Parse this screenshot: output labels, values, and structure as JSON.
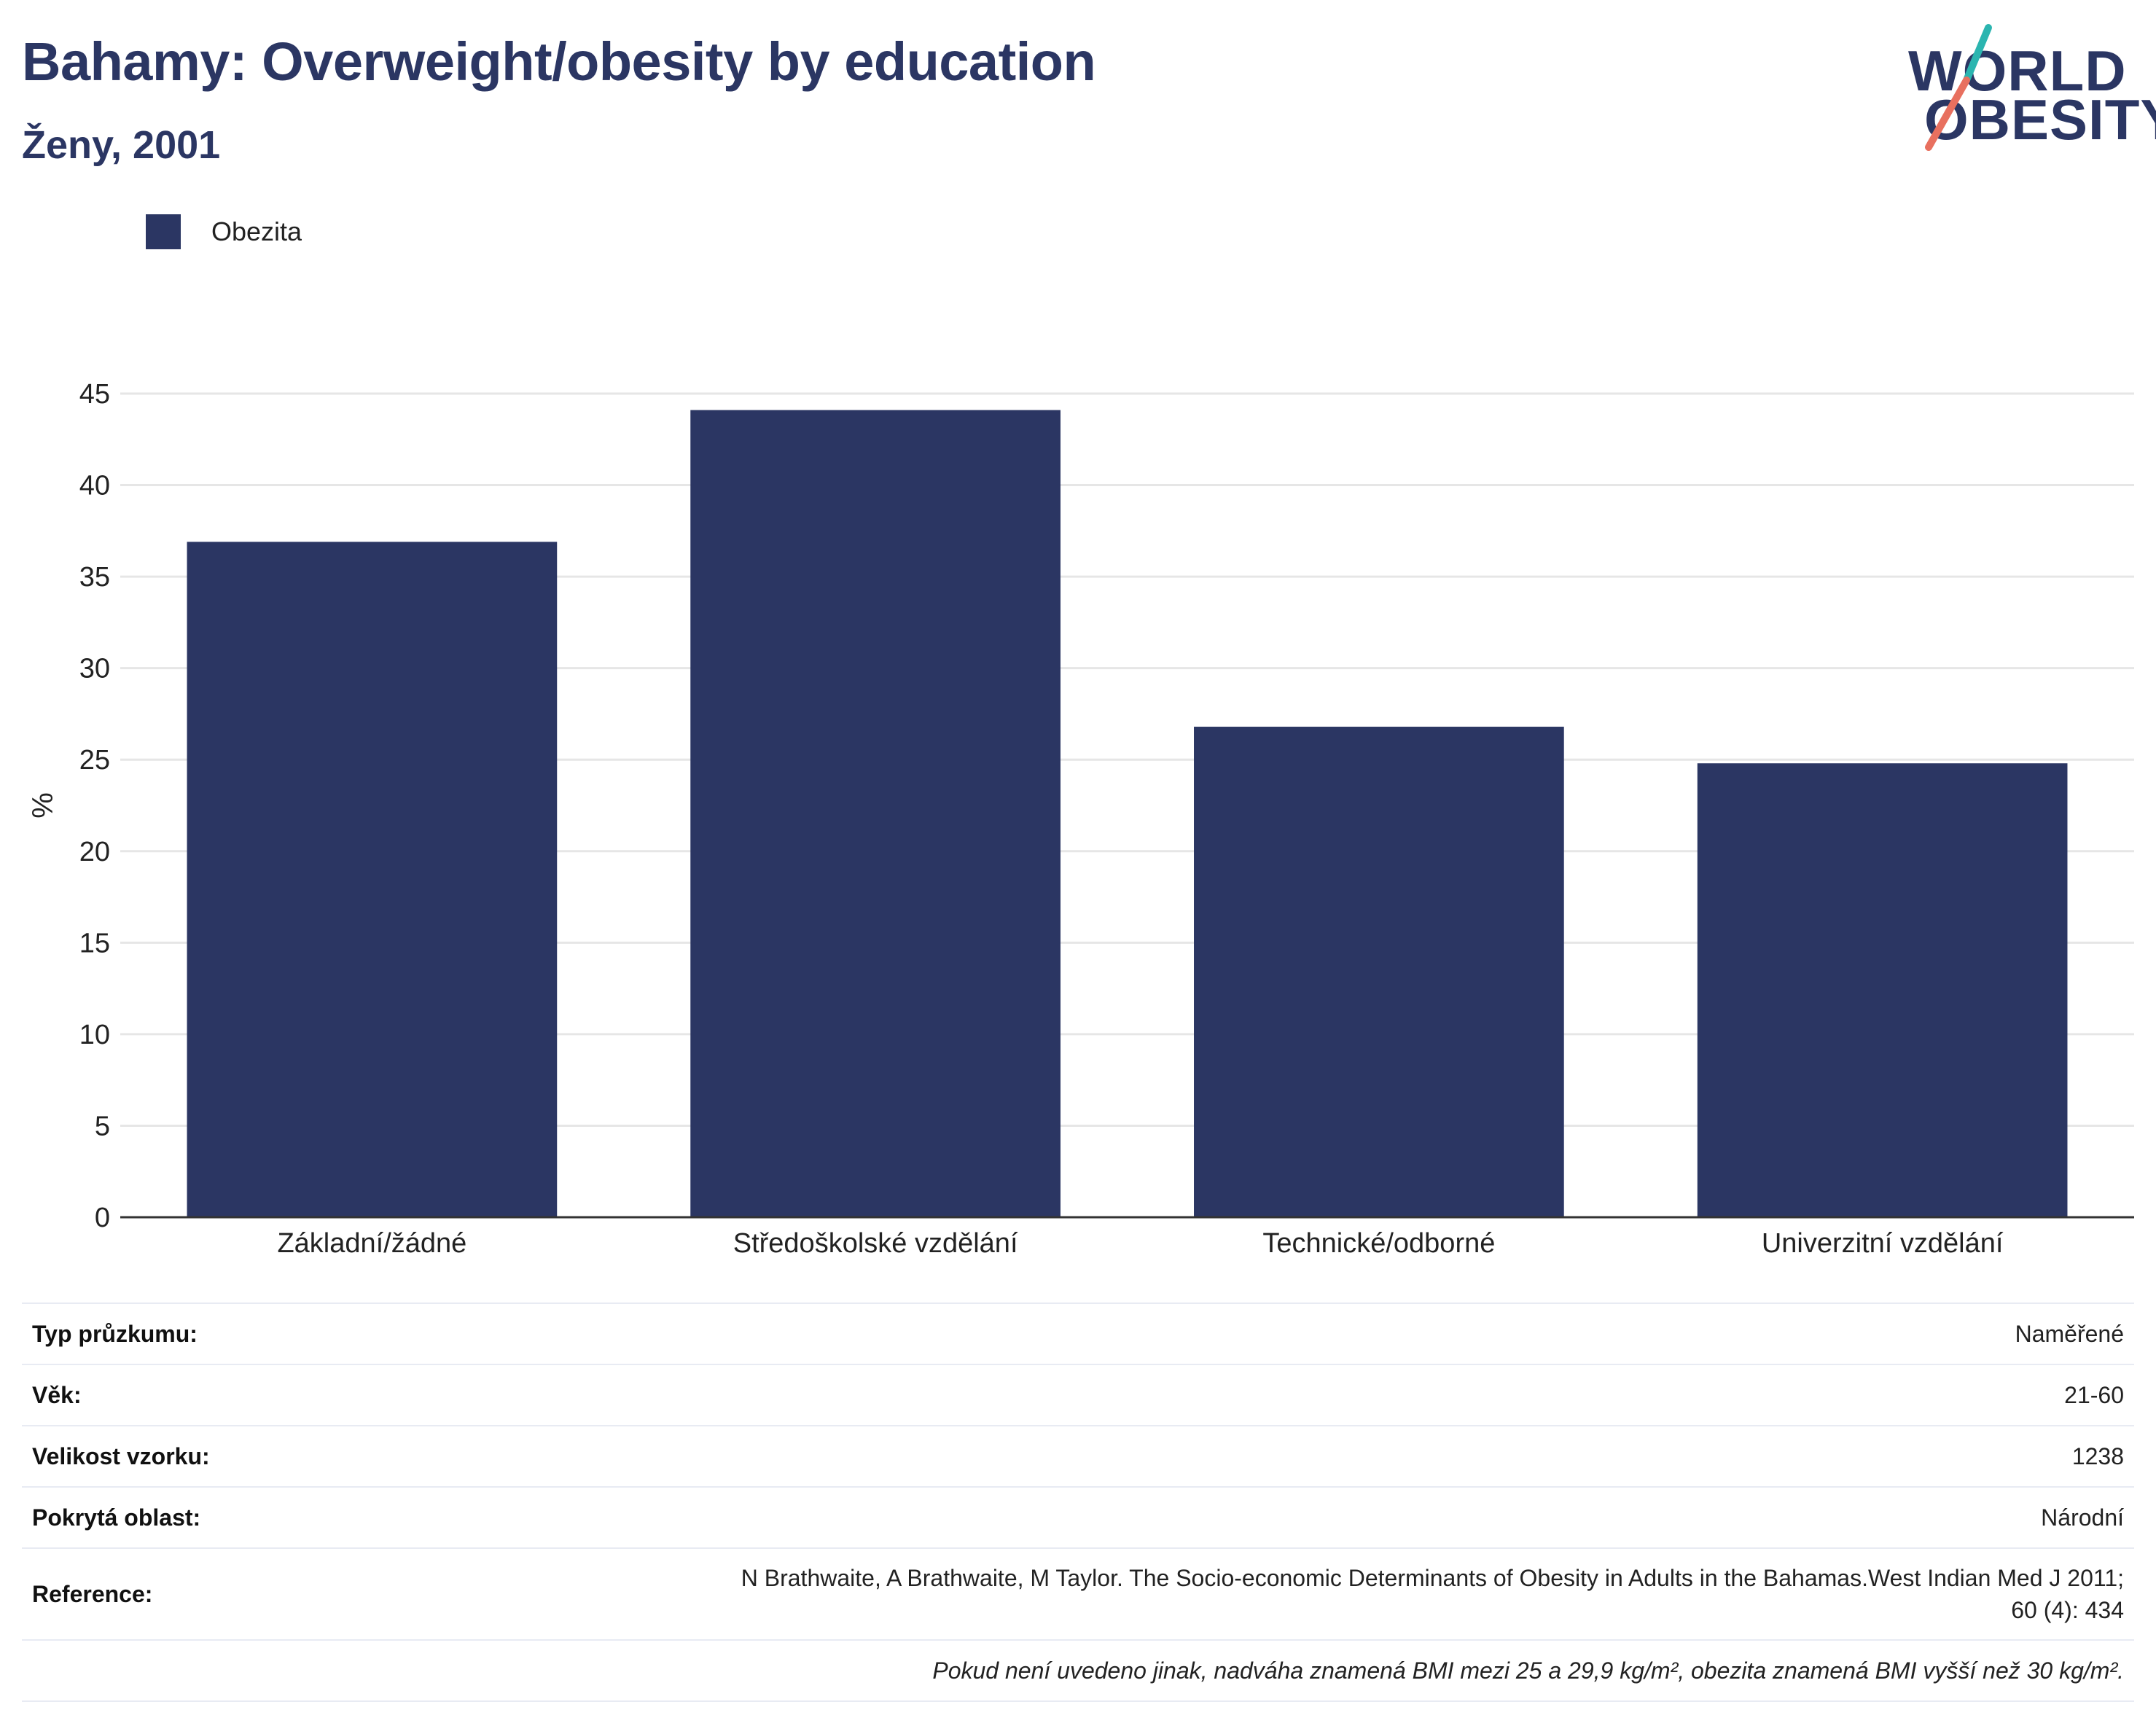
{
  "header": {
    "title": "Bahamy: Overweight/obesity by education",
    "subtitle": "Ženy, 2001"
  },
  "logo": {
    "line1": "WORLD",
    "line2": "OBESITY",
    "accent_teal": "#2bb5b0",
    "accent_coral": "#e8705f"
  },
  "colors": {
    "bar": "#2b3663",
    "grid": "#e6e6e6",
    "axis": "#333333",
    "title": "#2b3663"
  },
  "chart_data": {
    "type": "bar",
    "categories": [
      "Základní/žádné",
      "Středoškolské vzdělání",
      "Technické/odborné",
      "Univerzitní vzdělání"
    ],
    "series": [
      {
        "name": "Obezita",
        "values": [
          36.9,
          44.1,
          26.8,
          24.8
        ]
      }
    ],
    "ylabel": "%",
    "xlabel": "",
    "ylim": [
      0,
      45
    ],
    "yticks": [
      0,
      5,
      10,
      15,
      20,
      25,
      30,
      35,
      40,
      45
    ],
    "grid": true,
    "legend": "top-left"
  },
  "info": {
    "rows": [
      {
        "label": "Typ průzkumu:",
        "value": "Naměřené"
      },
      {
        "label": "Věk:",
        "value": "21-60"
      },
      {
        "label": "Velikost vzorku:",
        "value": "1238"
      },
      {
        "label": "Pokrytá oblast:",
        "value": "Národní"
      }
    ],
    "reference_label": "Reference:",
    "reference_line1": "N Brathwaite, A Brathwaite, M Taylor. The Socio-economic Determinants of Obesity in Adults in the Bahamas.West Indian Med J 2011;",
    "reference_line2": "60 (4): 434",
    "note": "Pokud není uvedeno jinak, nadváha znamená BMI mezi 25 a 29,9 kg/m², obezita znamená BMI vyšší než 30 kg/m²."
  }
}
